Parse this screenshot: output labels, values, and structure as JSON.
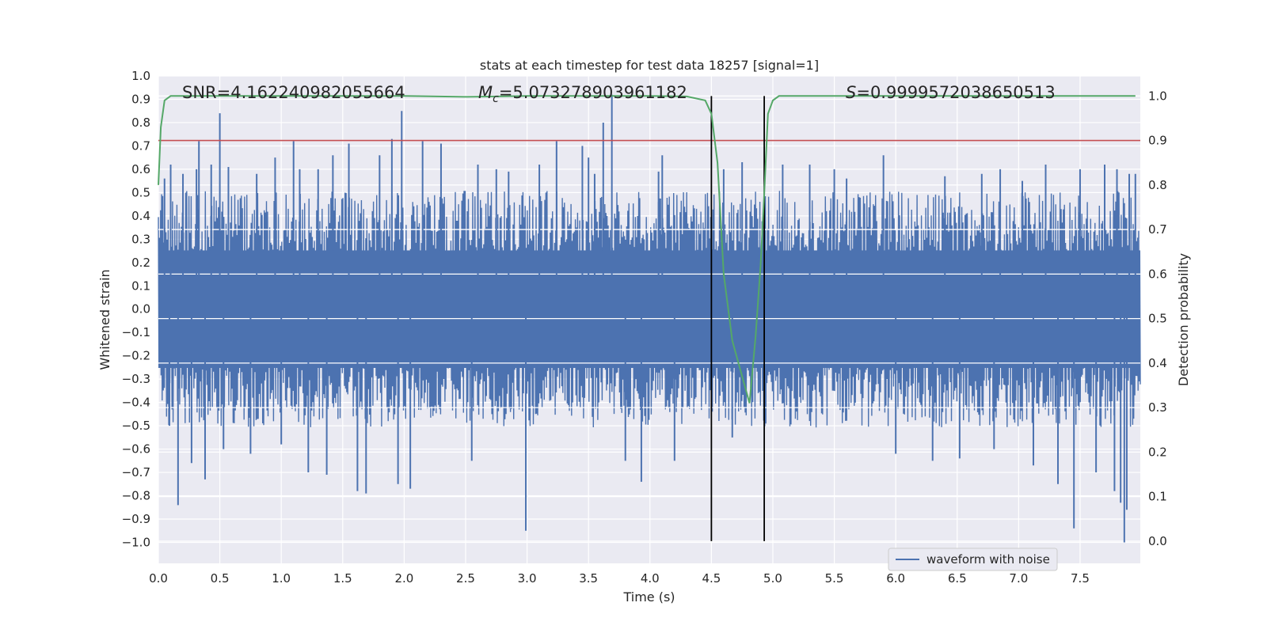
{
  "chart_data": {
    "type": "line",
    "title": "stats at each timestep for test data 18257 [signal=1]",
    "xlabel": "Time (s)",
    "ylabel_left": "Whitened strain",
    "ylabel_right": "Detection probability",
    "xlim": [
      0.0,
      7.99
    ],
    "ylim_left": [
      -1.09,
      1.0
    ],
    "ylim_right": [
      -0.05,
      1.045
    ],
    "x_ticks": [
      "0.0",
      "0.5",
      "1.0",
      "1.5",
      "2.0",
      "2.5",
      "3.0",
      "3.5",
      "4.0",
      "4.5",
      "5.0",
      "5.5",
      "6.0",
      "6.5",
      "7.0",
      "7.5"
    ],
    "y_left_ticks": [
      "1.0",
      "0.9",
      "0.8",
      "0.7",
      "0.6",
      "0.5",
      "0.4",
      "0.3",
      "0.2",
      "0.1",
      "0.0",
      "−0.1",
      "−0.2",
      "−0.3",
      "−0.4",
      "−0.5",
      "−0.6",
      "−0.7",
      "−0.8",
      "−0.9",
      "−1.0"
    ],
    "y_right_ticks": [
      "1.0",
      "0.9",
      "0.8",
      "0.7",
      "0.6",
      "0.5",
      "0.4",
      "0.3",
      "0.2",
      "0.1",
      "0.0"
    ],
    "grid": true,
    "legend": {
      "placement": "lower-right",
      "entries": [
        "waveform with noise"
      ]
    },
    "annotations": {
      "snr": "SNR=4.162240982055664",
      "mc_symbol": "M",
      "mc_subscript": "c",
      "mc_value": "=5.073278903961182",
      "s_symbol": "S",
      "s_value": "=0.9999572038650513"
    },
    "threshold": {
      "value": 0.9,
      "axis": "right",
      "color": "#c44e52"
    },
    "signal_window": {
      "start": 4.5,
      "end": 4.93,
      "color": "#000000"
    },
    "series": [
      {
        "name": "waveform with noise",
        "axis": "left",
        "color": "#4c72b0",
        "noise_envelope": {
          "x": [
            0.0,
            7.99
          ],
          "typical_min": -0.35,
          "typical_max": 0.35
        },
        "spikes": [
          {
            "x": 0.05,
            "y": 0.56
          },
          {
            "x": 0.09,
            "y": -0.5
          },
          {
            "x": 0.1,
            "y": 0.62
          },
          {
            "x": 0.16,
            "y": -0.84
          },
          {
            "x": 0.2,
            "y": 0.58
          },
          {
            "x": 0.27,
            "y": -0.66
          },
          {
            "x": 0.31,
            "y": 0.6
          },
          {
            "x": 0.33,
            "y": 0.72
          },
          {
            "x": 0.38,
            "y": -0.73
          },
          {
            "x": 0.43,
            "y": 0.62
          },
          {
            "x": 0.5,
            "y": 0.84
          },
          {
            "x": 0.53,
            "y": -0.6
          },
          {
            "x": 0.57,
            "y": 0.61
          },
          {
            "x": 0.75,
            "y": -0.62
          },
          {
            "x": 0.8,
            "y": 0.58
          },
          {
            "x": 0.95,
            "y": 0.65
          },
          {
            "x": 1.0,
            "y": -0.58
          },
          {
            "x": 1.1,
            "y": 0.72
          },
          {
            "x": 1.15,
            "y": 0.6
          },
          {
            "x": 1.22,
            "y": -0.7
          },
          {
            "x": 1.3,
            "y": 0.6
          },
          {
            "x": 1.37,
            "y": -0.71
          },
          {
            "x": 1.42,
            "y": 0.66
          },
          {
            "x": 1.55,
            "y": 0.71
          },
          {
            "x": 1.62,
            "y": -0.78
          },
          {
            "x": 1.69,
            "y": -0.79
          },
          {
            "x": 1.8,
            "y": 0.66
          },
          {
            "x": 1.9,
            "y": 0.73
          },
          {
            "x": 1.95,
            "y": -0.75
          },
          {
            "x": 1.98,
            "y": 0.85
          },
          {
            "x": 2.05,
            "y": -0.77
          },
          {
            "x": 2.15,
            "y": 0.72
          },
          {
            "x": 2.3,
            "y": 0.71
          },
          {
            "x": 2.55,
            "y": -0.65
          },
          {
            "x": 2.6,
            "y": 0.62
          },
          {
            "x": 2.75,
            "y": 0.6
          },
          {
            "x": 2.85,
            "y": 0.59
          },
          {
            "x": 2.99,
            "y": -0.95
          },
          {
            "x": 3.1,
            "y": 0.62
          },
          {
            "x": 3.24,
            "y": 0.72
          },
          {
            "x": 3.45,
            "y": 0.7
          },
          {
            "x": 3.5,
            "y": 0.65
          },
          {
            "x": 3.55,
            "y": 0.58
          },
          {
            "x": 3.62,
            "y": 0.8
          },
          {
            "x": 3.69,
            "y": 0.92
          },
          {
            "x": 3.8,
            "y": -0.65
          },
          {
            "x": 3.93,
            "y": -0.74
          },
          {
            "x": 4.07,
            "y": 0.59
          },
          {
            "x": 4.1,
            "y": 0.66
          },
          {
            "x": 4.2,
            "y": -0.65
          },
          {
            "x": 4.6,
            "y": 0.6
          },
          {
            "x": 4.67,
            "y": -0.55
          },
          {
            "x": 4.75,
            "y": 0.63
          },
          {
            "x": 5.08,
            "y": 0.62
          },
          {
            "x": 5.3,
            "y": 0.62
          },
          {
            "x": 5.5,
            "y": 0.6
          },
          {
            "x": 5.6,
            "y": 0.56
          },
          {
            "x": 5.9,
            "y": 0.66
          },
          {
            "x": 6.0,
            "y": -0.62
          },
          {
            "x": 6.3,
            "y": -0.65
          },
          {
            "x": 6.4,
            "y": 0.57
          },
          {
            "x": 6.52,
            "y": -0.64
          },
          {
            "x": 6.7,
            "y": 0.58
          },
          {
            "x": 6.8,
            "y": -0.6
          },
          {
            "x": 6.85,
            "y": 0.6
          },
          {
            "x": 7.03,
            "y": 0.55
          },
          {
            "x": 7.12,
            "y": -0.67
          },
          {
            "x": 7.22,
            "y": 0.62
          },
          {
            "x": 7.32,
            "y": -0.75
          },
          {
            "x": 7.45,
            "y": -0.94
          },
          {
            "x": 7.5,
            "y": 0.6
          },
          {
            "x": 7.63,
            "y": -0.7
          },
          {
            "x": 7.7,
            "y": 0.62
          },
          {
            "x": 7.78,
            "y": -0.78
          },
          {
            "x": 7.8,
            "y": 0.6
          },
          {
            "x": 7.83,
            "y": -0.83
          },
          {
            "x": 7.86,
            "y": -1.0
          },
          {
            "x": 7.88,
            "y": -0.86
          },
          {
            "x": 7.9,
            "y": 0.58
          },
          {
            "x": 7.95,
            "y": 0.58
          }
        ]
      },
      {
        "name": "",
        "axis": "right",
        "color": "#55a868",
        "x": [
          0.0,
          0.02,
          0.05,
          0.1,
          0.2,
          0.5,
          1.0,
          1.5,
          2.0,
          2.5,
          3.0,
          3.5,
          4.0,
          4.3,
          4.45,
          4.5,
          4.55,
          4.6,
          4.67,
          4.75,
          4.81,
          4.86,
          4.9,
          4.93,
          4.96,
          5.0,
          5.05,
          5.1,
          5.3,
          6.0,
          7.0,
          7.95
        ],
        "y": [
          0.8,
          0.93,
          0.99,
          1.0,
          1.0,
          1.0,
          1.0,
          1.0,
          1.0,
          0.998,
          1.0,
          1.0,
          1.0,
          0.999,
          0.99,
          0.96,
          0.85,
          0.6,
          0.45,
          0.37,
          0.31,
          0.46,
          0.62,
          0.78,
          0.96,
          0.99,
          1.0,
          1.0,
          1.0,
          1.0,
          1.0,
          1.0
        ]
      }
    ]
  }
}
